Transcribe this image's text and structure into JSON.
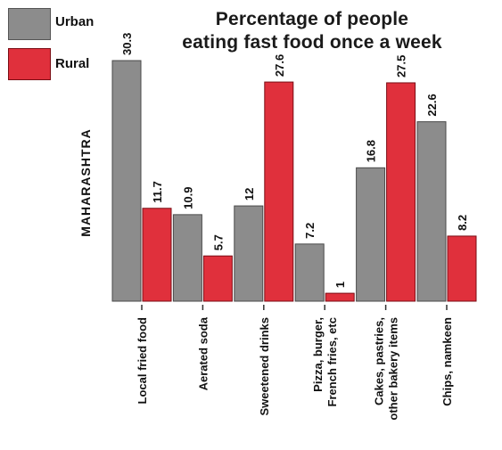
{
  "legend": {
    "urban_label": "Urban",
    "rural_label": "Rural"
  },
  "title": {
    "line1": "Percentage of people",
    "line2": "eating fast food once a week"
  },
  "region_label": "MAHARASHTRA",
  "colors": {
    "urban": "#8c8c8c",
    "rural": "#e0303c"
  },
  "chart_data": {
    "type": "bar",
    "title": "Percentage of people eating fast food once a week",
    "categories": [
      [
        "Local fried food"
      ],
      [
        "Aerated soda"
      ],
      [
        "Sweetened drinks"
      ],
      [
        "Pizza, burger,",
        "French fries, etc"
      ],
      [
        "Cakes, pastries,",
        "other bakery items"
      ],
      [
        "Chips, namkeen"
      ]
    ],
    "series": [
      {
        "name": "Urban",
        "values": [
          30.3,
          10.9,
          12,
          7.2,
          16.8,
          22.6
        ],
        "value_labels": [
          "30.3",
          "10.9",
          "12",
          "7.2",
          "16.8",
          "22.6"
        ]
      },
      {
        "name": "Rural",
        "values": [
          11.7,
          5.7,
          27.6,
          1,
          27.5,
          8.2
        ],
        "value_labels": [
          "11.7",
          "5.7",
          "27.6",
          "1",
          "27.5",
          "8.2"
        ]
      }
    ],
    "xlabel": "",
    "ylabel": "",
    "ylim": [
      0,
      30.3
    ],
    "grid": false,
    "legend_position": "top-left"
  }
}
